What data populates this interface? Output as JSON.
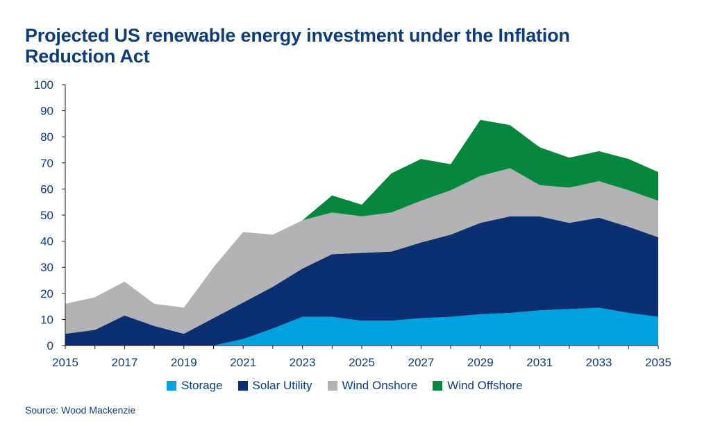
{
  "chart_data": {
    "type": "area",
    "title": "Projected US renewable energy investment under the Inflation Reduction Act",
    "xlabel": "",
    "ylabel": "",
    "stacked": true,
    "x": [
      2015,
      2016,
      2017,
      2018,
      2019,
      2020,
      2021,
      2022,
      2023,
      2024,
      2025,
      2026,
      2027,
      2028,
      2029,
      2030,
      2031,
      2032,
      2033,
      2034,
      2035
    ],
    "x_tick_labels": [
      "2015",
      "2017",
      "2019",
      "2021",
      "2023",
      "2025",
      "2027",
      "2029",
      "2031",
      "2033",
      "2035"
    ],
    "ylim": [
      0,
      100
    ],
    "y_ticks": [
      0,
      10,
      20,
      30,
      40,
      50,
      60,
      70,
      80,
      90,
      100
    ],
    "grid": false,
    "legend_position": "bottom",
    "series": [
      {
        "name": "Storage",
        "color": "#00a3e0",
        "values": [
          0,
          0,
          0,
          0,
          0,
          0,
          2.5,
          6.5,
          11,
          11,
          9.5,
          9.5,
          10.5,
          11,
          12,
          12.5,
          13.5,
          14,
          14.5,
          12.5,
          11
        ]
      },
      {
        "name": "Solar Utility",
        "color": "#0b2f73",
        "values": [
          4.5,
          6,
          11.5,
          7.5,
          4.5,
          10.5,
          14,
          16,
          18.5,
          24,
          26,
          26.5,
          29,
          31.5,
          35,
          37,
          36,
          33,
          34.5,
          33,
          30.5
        ]
      },
      {
        "name": "Wind Onshore",
        "color": "#b3b3b6",
        "values": [
          11.5,
          12.5,
          13,
          8.5,
          10,
          19.5,
          27,
          20,
          18.5,
          16,
          14,
          15,
          16,
          17,
          18,
          18.5,
          12,
          13.5,
          14,
          14,
          14
        ]
      },
      {
        "name": "Wind Offshore",
        "color": "#05873e",
        "values": [
          0,
          0,
          0,
          0,
          0,
          0,
          0,
          0,
          0,
          6.5,
          4.5,
          15,
          16,
          10,
          21.5,
          16.5,
          14.5,
          11.5,
          11.5,
          12,
          11
        ]
      }
    ]
  },
  "source": "Source: Wood Mackenzie"
}
